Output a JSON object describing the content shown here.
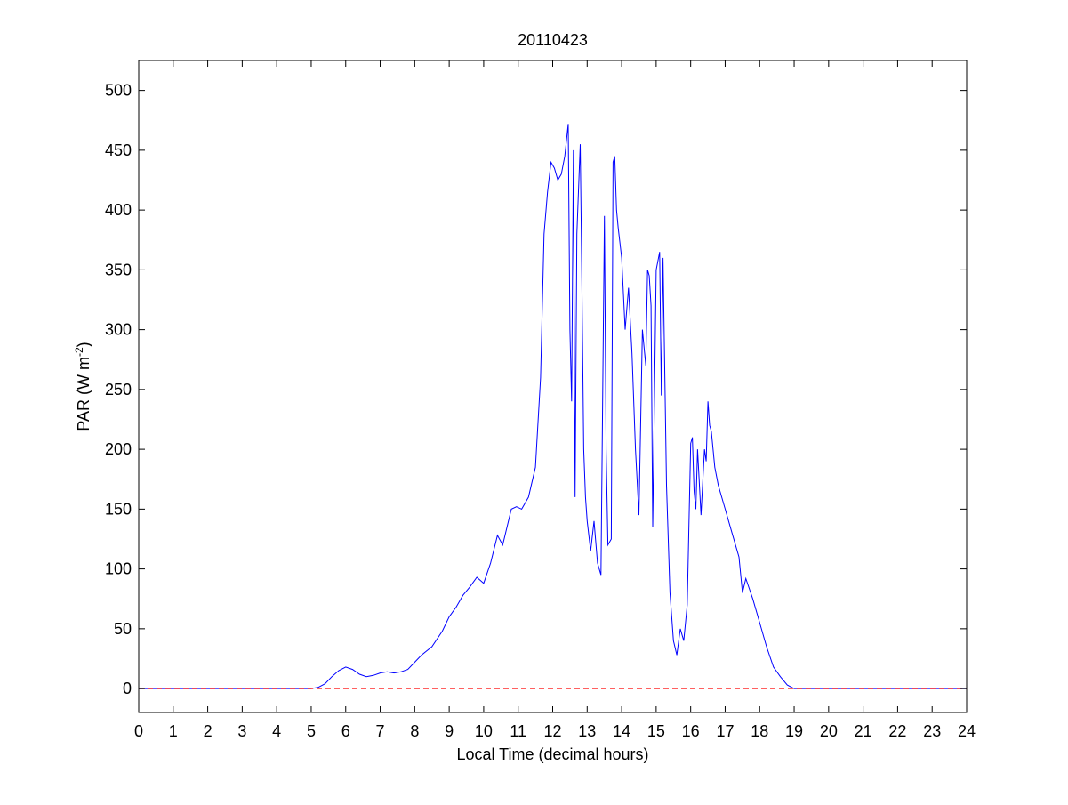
{
  "chart_data": {
    "type": "line",
    "title": "20110423",
    "xlabel": "Local Time (decimal hours)",
    "ylabel": "PAR (W m",
    "ylabel_sup": "-2",
    "ylabel_end": ")",
    "xlim": [
      0,
      24
    ],
    "ylim": [
      -20,
      525
    ],
    "xticks": [
      0,
      1,
      2,
      3,
      4,
      5,
      6,
      7,
      8,
      9,
      10,
      11,
      12,
      13,
      14,
      15,
      16,
      17,
      18,
      19,
      20,
      21,
      22,
      23,
      24
    ],
    "yticks": [
      0,
      50,
      100,
      150,
      200,
      250,
      300,
      350,
      400,
      450,
      500
    ],
    "grid": false,
    "colors": {
      "series": "#0000ff",
      "reference": "#ff0000",
      "axes": "#000000"
    },
    "series": [
      {
        "style": "solid",
        "x": [
          0,
          5.0,
          5.2,
          5.4,
          5.6,
          5.8,
          6.0,
          6.2,
          6.4,
          6.6,
          6.8,
          7.0,
          7.2,
          7.4,
          7.6,
          7.8,
          8.0,
          8.2,
          8.5,
          8.8,
          9.0,
          9.2,
          9.4,
          9.6,
          9.8,
          10.0,
          10.2,
          10.4,
          10.55,
          10.7,
          10.8,
          10.95,
          11.1,
          11.3,
          11.5,
          11.65,
          11.75,
          11.85,
          11.95,
          12.05,
          12.15,
          12.25,
          12.35,
          12.45,
          12.5,
          12.55,
          12.6,
          12.65,
          12.7,
          12.8,
          12.85,
          12.9,
          12.95,
          13.0,
          13.1,
          13.2,
          13.3,
          13.4,
          13.5,
          13.55,
          13.6,
          13.7,
          13.75,
          13.8,
          13.85,
          13.9,
          14.0,
          14.1,
          14.2,
          14.3,
          14.4,
          14.5,
          14.55,
          14.6,
          14.7,
          14.75,
          14.8,
          14.85,
          14.9,
          15.0,
          15.1,
          15.15,
          15.2,
          15.3,
          15.4,
          15.5,
          15.6,
          15.7,
          15.8,
          15.9,
          16.0,
          16.05,
          16.1,
          16.15,
          16.2,
          16.3,
          16.4,
          16.45,
          16.5,
          16.55,
          16.6,
          16.7,
          16.8,
          17.0,
          17.2,
          17.4,
          17.5,
          17.6,
          17.8,
          18.0,
          18.2,
          18.4,
          18.6,
          18.8,
          19.0,
          19.3,
          24
        ],
        "y": [
          0,
          0,
          1,
          4,
          10,
          15,
          18,
          16,
          12,
          10,
          11,
          13,
          14,
          13,
          14,
          16,
          22,
          28,
          35,
          48,
          60,
          68,
          78,
          85,
          93,
          88,
          105,
          128,
          120,
          138,
          150,
          152,
          150,
          160,
          185,
          260,
          380,
          415,
          440,
          435,
          425,
          430,
          445,
          472,
          300,
          240,
          450,
          160,
          380,
          455,
          330,
          200,
          160,
          140,
          115,
          140,
          105,
          95,
          395,
          200,
          120,
          125,
          440,
          445,
          400,
          385,
          360,
          300,
          335,
          280,
          200,
          145,
          220,
          300,
          270,
          350,
          345,
          320,
          135,
          350,
          365,
          245,
          360,
          170,
          80,
          40,
          28,
          50,
          40,
          70,
          205,
          210,
          165,
          150,
          200,
          145,
          200,
          190,
          240,
          220,
          215,
          185,
          170,
          150,
          130,
          110,
          80,
          92,
          75,
          55,
          35,
          18,
          10,
          3,
          0,
          0,
          0
        ]
      },
      {
        "style": "dashed",
        "x": [
          0,
          24
        ],
        "y": [
          0,
          0
        ]
      }
    ]
  }
}
